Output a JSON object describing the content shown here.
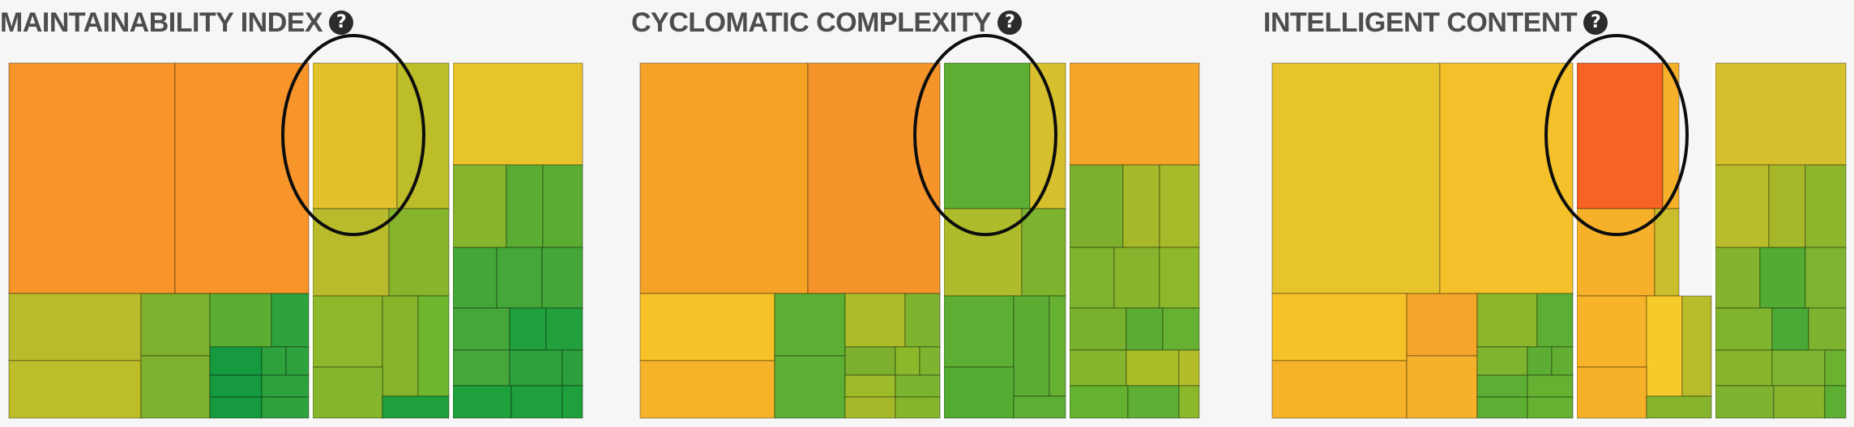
{
  "panels": [
    {
      "title": "MAINTAINABILITY INDEX",
      "help_icon": "question-circle-icon",
      "highlight": "ellipse",
      "rows": [
        [
          "#f7952a",
          "#f7952a",
          "#e3c12d",
          "#bdbd2a",
          "#b9bb2d",
          "#bebd2a",
          "#e8c42c",
          "#86b42c",
          "#5aac33",
          "#5aac33",
          "#5aac33",
          "#6db62d",
          "#85b42d",
          "#b6bd2a",
          "#44a538",
          "#45a739",
          "#2c9f3c",
          "#2da23c",
          "#22a03c",
          "#1ea03d",
          "#1ea03d"
        ],
        [
          "#b9bb2d",
          "#bdbd2a",
          "#7eb12e",
          "#5cae32",
          "#2ea33c",
          "#2ea23c",
          "#2ea23d",
          "#169a40",
          "#a9bc2a",
          "#85b42d",
          "#86b52c",
          "#5ea937",
          "#61b133",
          "#24a03b"
        ]
      ]
    },
    {
      "title": "CYCLOMATIC COMPLEXITY",
      "help_icon": "question-circle-icon",
      "highlight": "ellipse",
      "rows": [
        [
          "#f5a327",
          "#f5942a",
          "#5caf32",
          "#d6c02d",
          "#aebb2a",
          "#7eb32f",
          "#f5a527",
          "#7db02e",
          "#a7b92a",
          "#a6ba2a",
          "#7fb42e",
          "#86b42c",
          "#8db82b",
          "#78b12e",
          "#5cad33",
          "#66b131"
        ],
        [
          "#f7c227",
          "#f6b329",
          "#5caf32",
          "#5caf33",
          "#9ebb2a",
          "#7cb32f",
          "#b3bd2a",
          "#8bb72a",
          "#55ac33",
          "#5caf32",
          "#65b231",
          "#a9bd29",
          "#85b62d"
        ]
      ]
    },
    {
      "title": "INTELLIGENT CONTENT",
      "help_icon": "question-circle-icon",
      "highlight": "ellipse",
      "rows": [
        [
          "#e8c42c",
          "#f4c12a",
          "#f66322",
          "#f6b02a",
          "#d7c02e",
          "#cabe2c",
          "#b9bd2b",
          "#a6b829",
          "#8fb52c",
          "#84b32d",
          "#53ab33",
          "#4aaa35",
          "#7eb42f",
          "#7eb42e"
        ],
        [
          "#f7c227",
          "#f6a52b",
          "#8cb62b",
          "#5caf32",
          "#f7b42a",
          "#f7ca2c",
          "#b6bc2a",
          "#86b42d",
          "#66b132",
          "#62ae32",
          "#5dac33",
          "#65b131",
          "#7db32f",
          "#6ab22f"
        ]
      ]
    }
  ]
}
